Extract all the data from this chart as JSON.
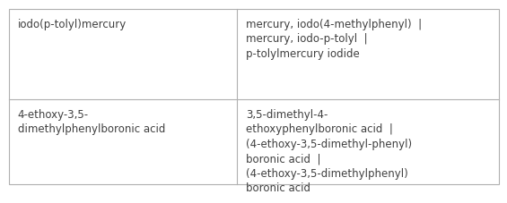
{
  "rows": [
    {
      "left": "iodo(p-tolyl)mercury",
      "right": "mercury, iodo(4-methylphenyl)  |\nmercury, iodo-p-tolyl  |\np-tolylmercury iodide"
    },
    {
      "left": "4-ethoxy-3,5-\ndimethylphenylboronic acid",
      "right": "3,5-dimethyl-4-\nethoxyphenylboronic acid  |\n(4-ethoxy-3,5-dimethyl-phenyl)\nboronic acid  |\n(4-ethoxy-3,5-dimethylphenyl)\nboronic acid"
    }
  ],
  "col_split": 0.465,
  "background_color": "#ffffff",
  "border_color": "#b0b0b0",
  "text_color": "#404040",
  "font_size": 8.5,
  "row_split": 0.485
}
